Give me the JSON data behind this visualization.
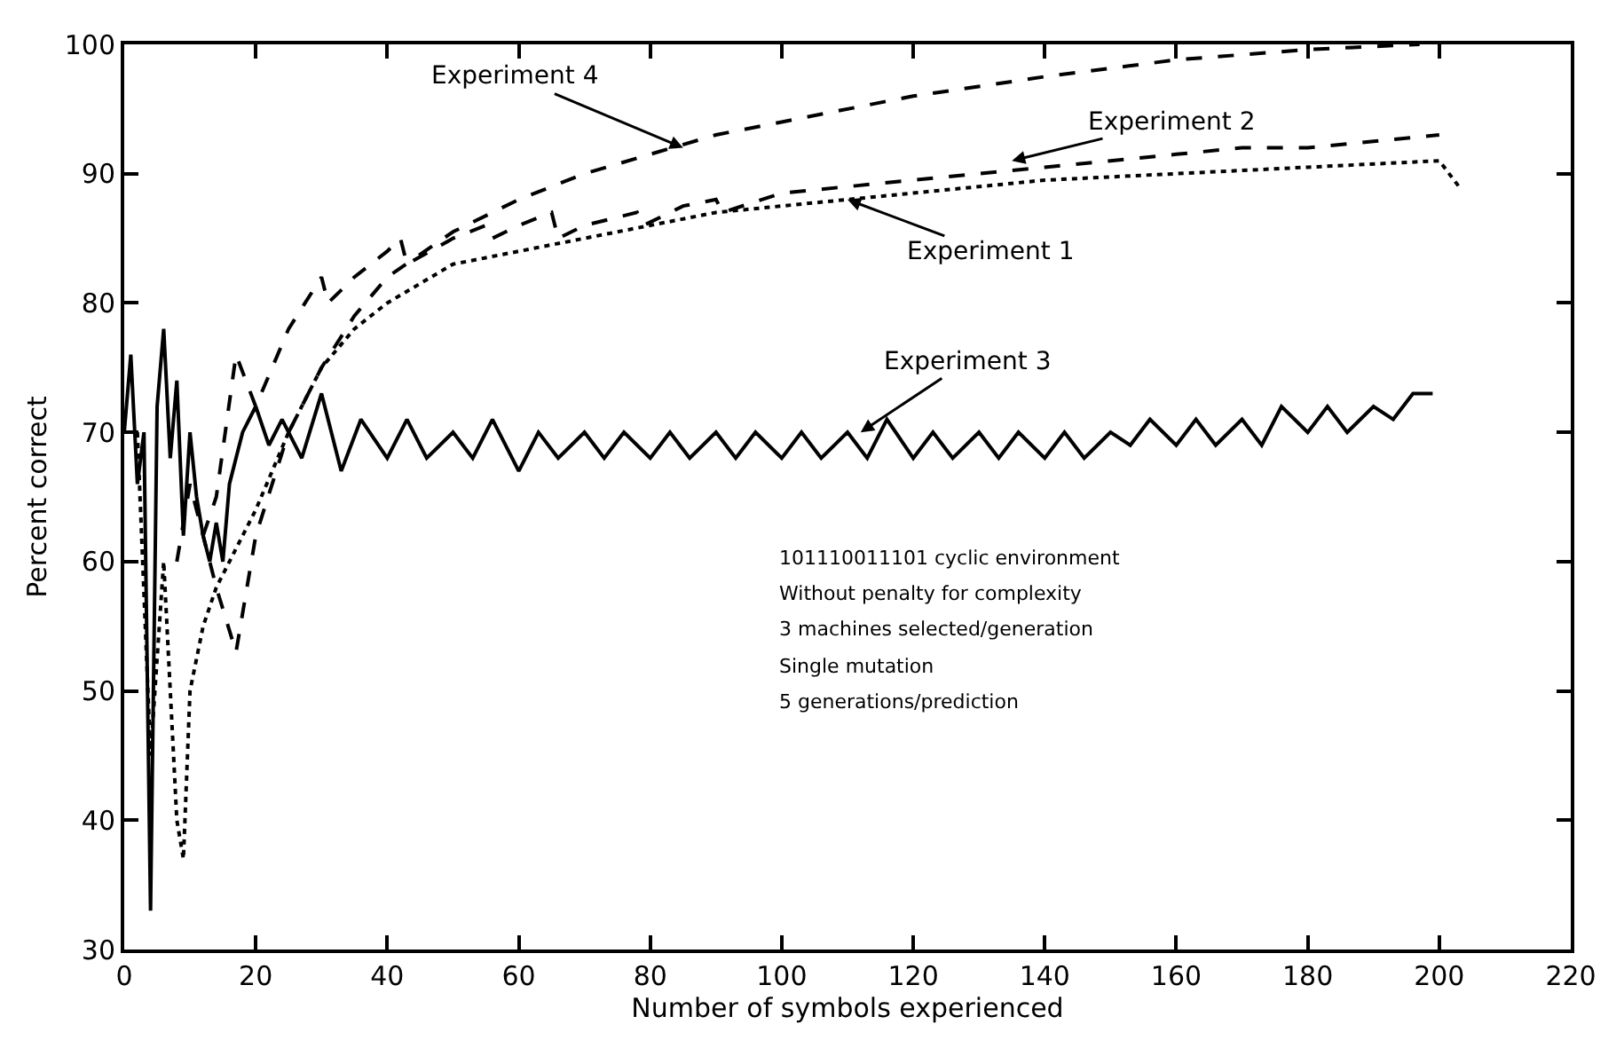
{
  "chart_data": {
    "type": "line",
    "xlabel": "Number of symbols experienced",
    "ylabel": "Percent correct",
    "xlim": [
      0,
      220
    ],
    "xticks": [
      0,
      20,
      40,
      60,
      80,
      100,
      120,
      140,
      160,
      180,
      200,
      220
    ],
    "ylim": [
      30,
      100
    ],
    "yticks": [
      30,
      40,
      50,
      60,
      70,
      80,
      90,
      100
    ],
    "legend": false,
    "marker": "none",
    "series": [
      {
        "color": "#000000",
        "line_style": "dashed",
        "x": [
          8,
          10,
          12,
          14,
          17,
          20,
          25,
          30,
          35,
          40,
          50,
          60,
          70,
          80,
          90,
          100,
          120,
          140,
          160,
          180,
          197
        ],
        "values": [
          60,
          66,
          62,
          58,
          53,
          62,
          70,
          75,
          79,
          82,
          85.5,
          88,
          90,
          91.5,
          93,
          94,
          96,
          97.5,
          98.8,
          99.6,
          100
        ]
      },
      {
        "color": "#000000",
        "line_style": "dashed",
        "x": [
          12,
          14,
          17,
          20,
          25,
          30,
          31,
          35,
          40,
          42,
          43,
          50,
          55,
          56,
          60,
          65,
          66,
          70,
          78,
          79,
          85,
          90,
          91,
          100,
          110,
          120,
          130,
          140,
          150,
          160,
          170,
          180,
          190,
          200
        ],
        "values": [
          62,
          65,
          76,
          72,
          78,
          82,
          80,
          82,
          84,
          85,
          83,
          85,
          86,
          85,
          86,
          87,
          85,
          86,
          87,
          86,
          87.5,
          88,
          87,
          88.5,
          89,
          89.5,
          90,
          90.5,
          91,
          91.5,
          92,
          92,
          92.5,
          93
        ]
      },
      {
        "color": "#000000",
        "line_style": "dotted",
        "x": [
          2,
          4,
          6,
          8,
          9,
          10,
          12,
          14,
          16,
          18,
          20,
          25,
          30,
          35,
          40,
          50,
          60,
          70,
          80,
          90,
          100,
          120,
          140,
          160,
          180,
          200,
          203
        ],
        "values": [
          70,
          45,
          60,
          40,
          37,
          50,
          55,
          58,
          60,
          62,
          64,
          70,
          75,
          78,
          80,
          83,
          84,
          85,
          86,
          87,
          87.5,
          88.5,
          89.5,
          90,
          90.5,
          91,
          89
        ]
      },
      {
        "color": "#000000",
        "line_style": "solid",
        "x": [
          0,
          1,
          2,
          3,
          4,
          5,
          6,
          7,
          8,
          9,
          10,
          11,
          12,
          13,
          14,
          15,
          16,
          18,
          20,
          22,
          24,
          27,
          30,
          33,
          36,
          40,
          43,
          46,
          50,
          53,
          56,
          60,
          63,
          66,
          70,
          73,
          76,
          80,
          83,
          86,
          90,
          93,
          96,
          100,
          103,
          106,
          110,
          113,
          116,
          120,
          123,
          126,
          130,
          133,
          136,
          140,
          143,
          146,
          150,
          153,
          156,
          160,
          163,
          166,
          170,
          173,
          176,
          180,
          183,
          186,
          190,
          193,
          196,
          199
        ],
        "values": [
          70,
          76,
          66,
          70,
          33,
          72,
          78,
          68,
          74,
          62,
          70,
          65,
          62,
          60,
          63,
          60,
          66,
          70,
          72,
          69,
          71,
          68,
          73,
          67,
          71,
          68,
          71,
          68,
          70,
          68,
          71,
          67,
          70,
          68,
          70,
          68,
          70,
          68,
          70,
          68,
          70,
          68,
          70,
          68,
          70,
          68,
          70,
          68,
          71,
          68,
          70,
          68,
          70,
          68,
          70,
          68,
          70,
          68,
          70,
          69,
          71,
          69,
          71,
          69,
          71,
          69,
          72,
          70,
          72,
          70,
          72,
          71,
          73,
          73
        ]
      }
    ],
    "annotations": [
      {
        "text": "Experiment 4",
        "x": 85,
        "y": 92
      },
      {
        "text": "Experiment 2",
        "x": 135,
        "y": 91
      },
      {
        "text": "Experiment 1",
        "x": 110,
        "y": 88
      },
      {
        "text": "Experiment 3",
        "x": 112,
        "y": 70
      },
      "101110011101 cyclic environment",
      "Without penalty for complexity",
      "3 machines selected/generation",
      "Single mutation",
      "5 generations/prediction"
    ]
  }
}
